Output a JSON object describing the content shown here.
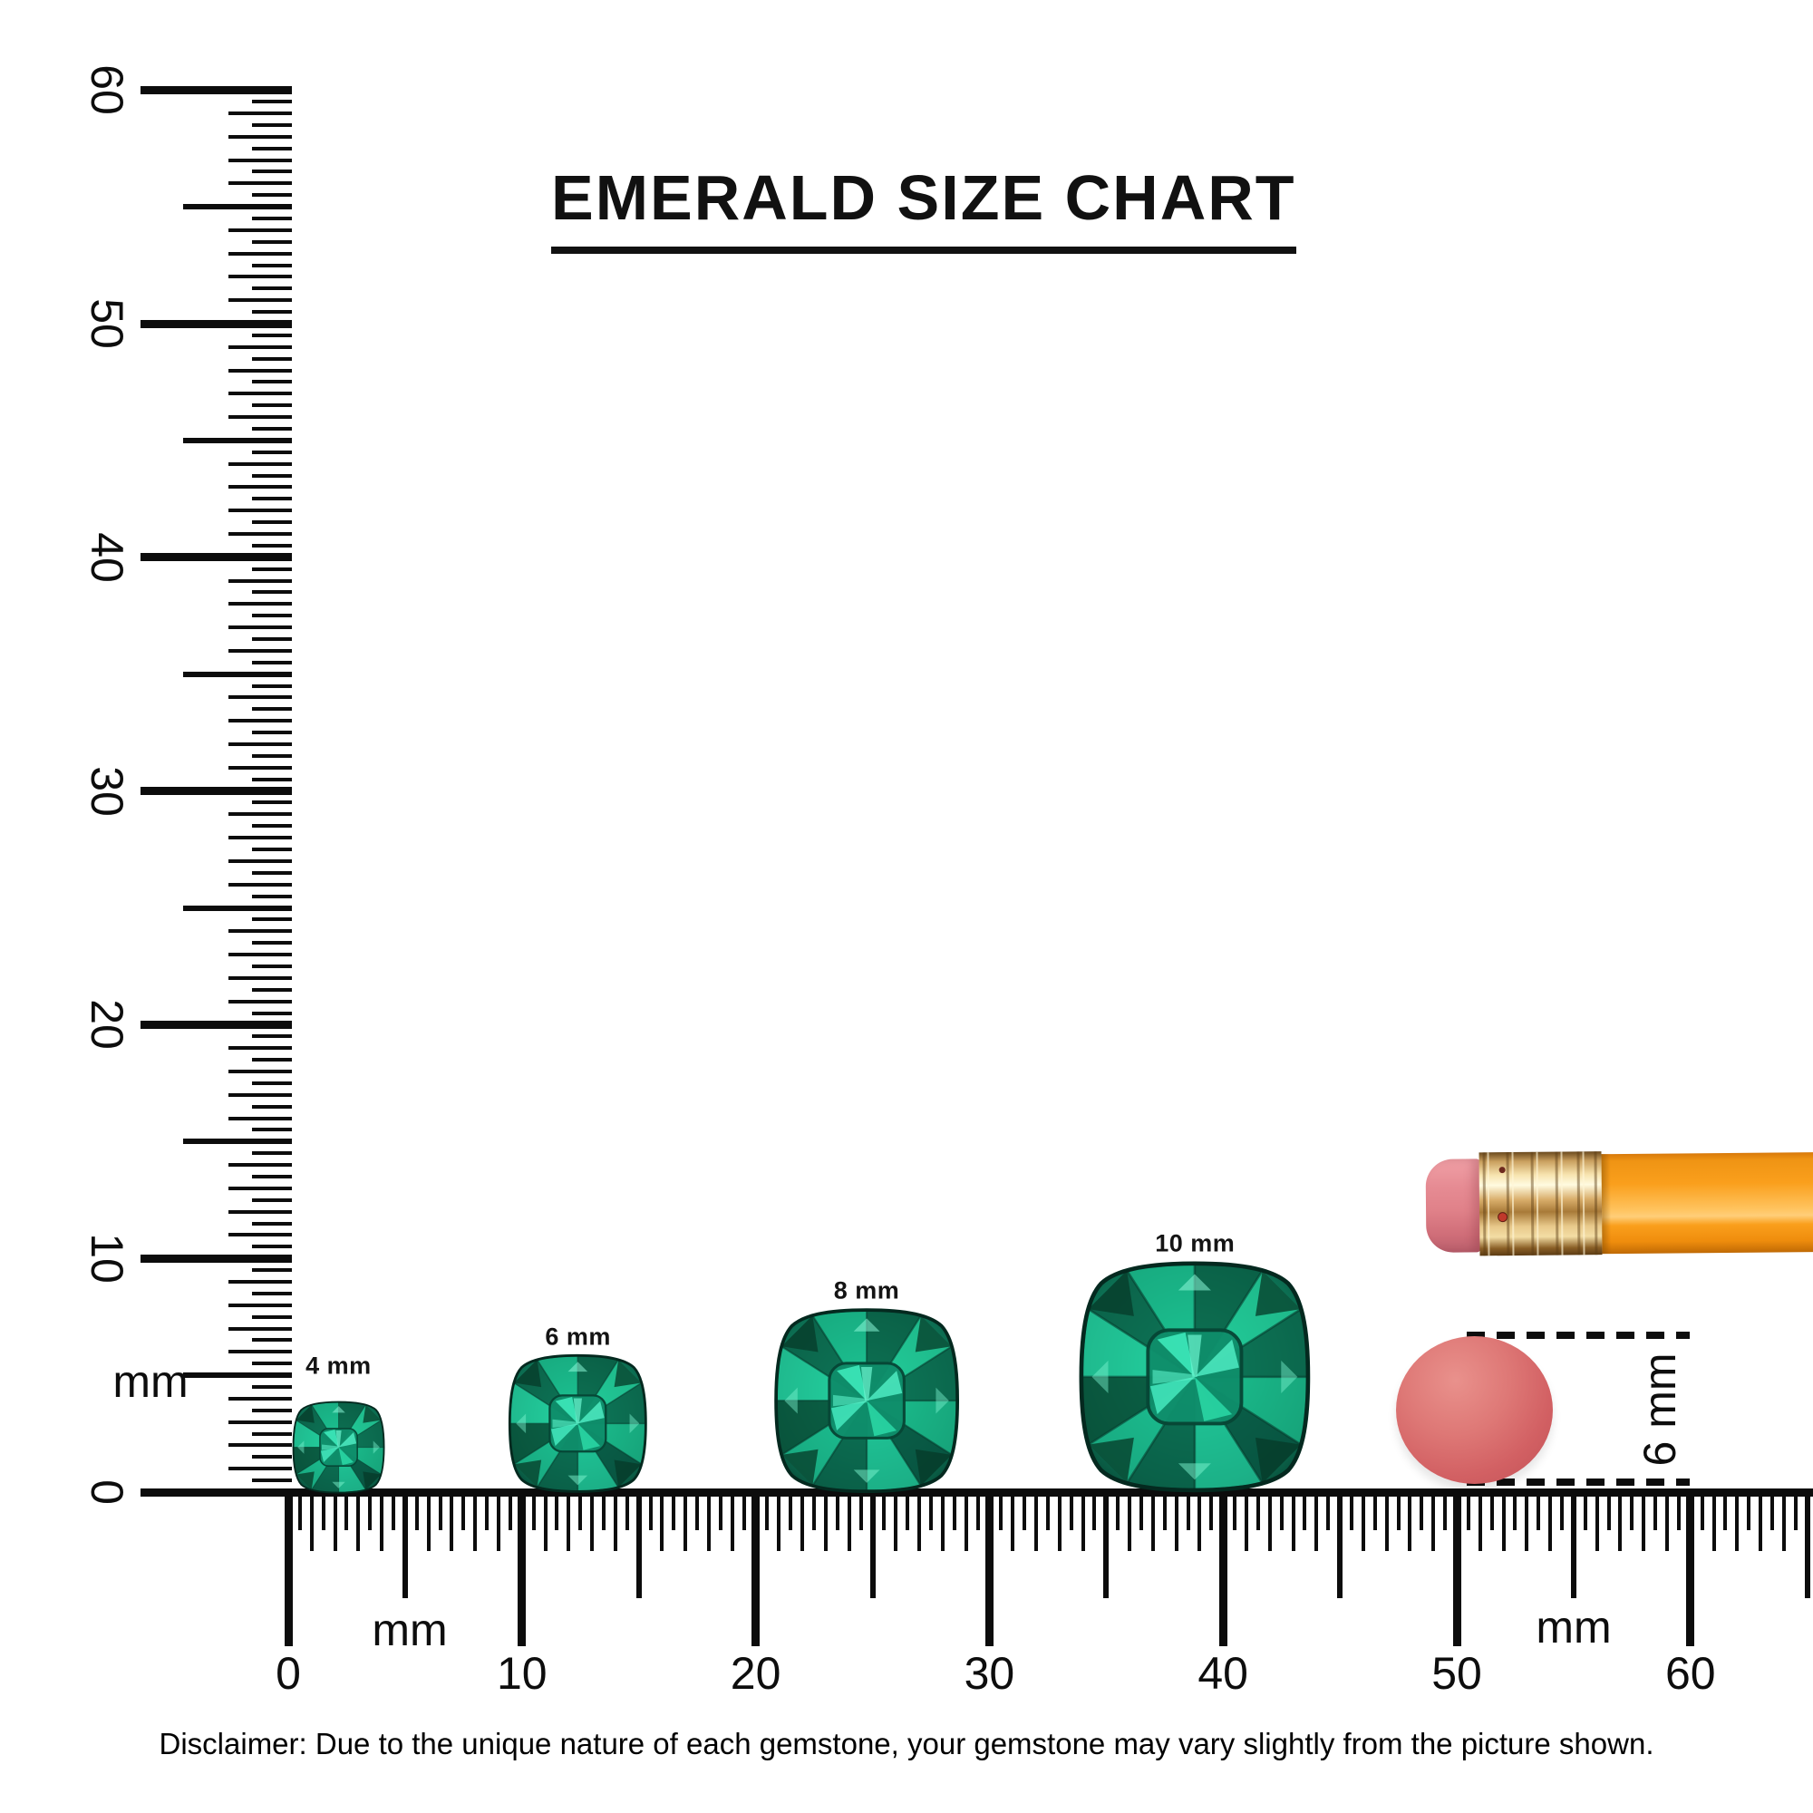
{
  "title": "EMERALD SIZE CHART",
  "disclaimer": "Disclaimer: Due to the unique nature of each gemstone, your gemstone may vary slightly from the picture shown.",
  "vertical_ruler": {
    "unit_label": "mm",
    "major_labels": [
      "60",
      "50",
      "40",
      "30",
      "20",
      "10",
      "0"
    ],
    "range_mm": [
      0,
      60
    ],
    "tick_step_mm": 0.5
  },
  "horizontal_ruler": {
    "unit_label_left": "mm",
    "unit_label_right": "mm",
    "major_labels": [
      "0",
      "10",
      "20",
      "30",
      "40",
      "50",
      "60"
    ],
    "range_mm": [
      0,
      65
    ],
    "tick_step_mm": 0.5
  },
  "gems": [
    {
      "label": "4 mm",
      "size_mm": 4,
      "position_mm": 2.15
    },
    {
      "label": "6 mm",
      "size_mm": 6,
      "position_mm": 12.4
    },
    {
      "label": "8 mm",
      "size_mm": 8,
      "position_mm": 24.75
    },
    {
      "label": "10 mm",
      "size_mm": 10,
      "position_mm": 38.8
    }
  ],
  "eraser_measure": {
    "label": "6 mm",
    "diameter_mm": 6
  },
  "colors": {
    "ink": "#0d0d0d",
    "emerald_bright": "#2fe3ac",
    "emerald_mid": "#11926d",
    "emerald_dark": "#074735",
    "pencil_body": "#f89d1b",
    "pencil_ferrule": "#d9ae6b",
    "pencil_eraser": "#e08189",
    "eraser_disc": "#d26063"
  }
}
